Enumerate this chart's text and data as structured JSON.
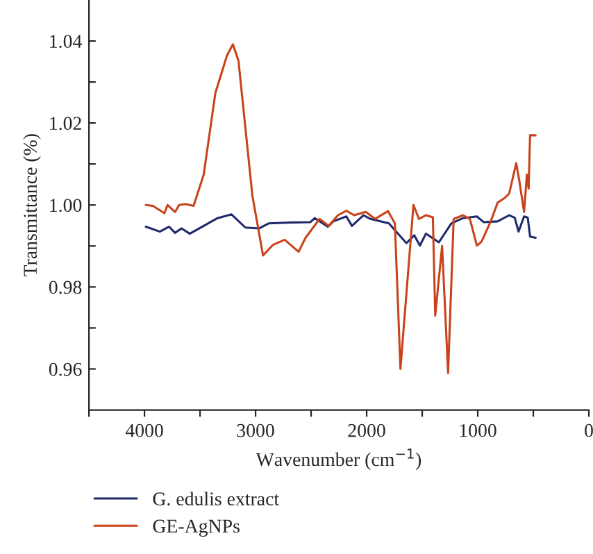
{
  "chart_data": {
    "type": "line",
    "xlabel": "Wavenumber (cm$^{−1}$)",
    "ylabel": "Transmittance (%)",
    "xlim": [
      4500,
      0
    ],
    "ylim": [
      0.95,
      1.05
    ],
    "xticks": [
      {
        "value": 4500,
        "label": null
      },
      4000,
      {
        "value": 3500,
        "label": null
      },
      3000,
      {
        "value": 2500,
        "label": null
      },
      2000,
      {
        "value": 1500,
        "label": null
      },
      1000,
      {
        "value": 500,
        "label": null
      },
      0
    ],
    "yticks": [
      {
        "value": 0.96,
        "label": "0.96"
      },
      {
        "value": 0.97,
        "label": null
      },
      {
        "value": 0.98,
        "label": "0.98"
      },
      {
        "value": 0.99,
        "label": null
      },
      {
        "value": 1.0,
        "label": "1.00"
      },
      {
        "value": 1.01,
        "label": null
      },
      {
        "value": 1.02,
        "label": "1.02"
      },
      {
        "value": 1.03,
        "label": null
      },
      {
        "value": 1.04,
        "label": "1.04"
      }
    ],
    "grid": false,
    "legend": "bottom left",
    "marker": "none",
    "line_style": "solid",
    "series": [
      {
        "name": "G. edulis extract",
        "color": "#1f2a6b",
        "x": [
          3988,
          3863,
          3779,
          3725,
          3667,
          3592,
          3467,
          3342,
          3217,
          3092,
          2967,
          2883,
          2717,
          2508,
          2467,
          2350,
          2300,
          2183,
          2133,
          2029,
          1967,
          1800,
          1642,
          1571,
          1521,
          1467,
          1350,
          1238,
          1133,
          1008,
          946,
          821,
          717,
          667,
          633,
          583,
          550,
          529,
          479
        ],
        "values": [
          0.9947,
          0.9935,
          0.9947,
          0.9932,
          0.9943,
          0.993,
          0.9949,
          0.9968,
          0.9977,
          0.9945,
          0.9943,
          0.9955,
          0.9957,
          0.9958,
          0.9968,
          0.9947,
          0.996,
          0.9972,
          0.9949,
          0.9975,
          0.9966,
          0.9955,
          0.9907,
          0.9926,
          0.9901,
          0.993,
          0.9909,
          0.9955,
          0.9968,
          0.9972,
          0.9958,
          0.996,
          0.9975,
          0.9969,
          0.9935,
          0.9972,
          0.9969,
          0.9923,
          0.992
        ]
      },
      {
        "name": "GE-AgNPs",
        "color": "#c8431a",
        "x": [
          3988,
          3925,
          3821,
          3792,
          3725,
          3688,
          3633,
          3558,
          3467,
          3362,
          3258,
          3204,
          3154,
          3029,
          2933,
          2842,
          2738,
          2613,
          2550,
          2425,
          2342,
          2258,
          2183,
          2113,
          2008,
          1925,
          1808,
          1746,
          1696,
          1579,
          1529,
          1467,
          1404,
          1383,
          1321,
          1267,
          1217,
          1133,
          1071,
          1008,
          967,
          883,
          821,
          758,
          717,
          654,
          625,
          583,
          558,
          542,
          529,
          479
        ],
        "values": [
          1.0,
          0.9998,
          0.998,
          1.0,
          0.9983,
          1.0,
          1.0002,
          0.9998,
          1.0074,
          1.0273,
          1.0364,
          1.0392,
          1.0352,
          1.0023,
          0.9877,
          0.9903,
          0.9915,
          0.9886,
          0.992,
          0.9966,
          0.9949,
          0.9975,
          0.9986,
          0.9975,
          0.9983,
          0.9966,
          0.9985,
          0.9955,
          0.96,
          1.0,
          0.9966,
          0.9975,
          0.997,
          0.973,
          0.99,
          0.959,
          0.9966,
          0.9975,
          0.9966,
          0.9901,
          0.991,
          0.996,
          1.0006,
          1.0017,
          1.0028,
          1.0102,
          1.0057,
          0.9983,
          1.0074,
          1.004,
          1.017,
          1.017
        ]
      }
    ]
  }
}
